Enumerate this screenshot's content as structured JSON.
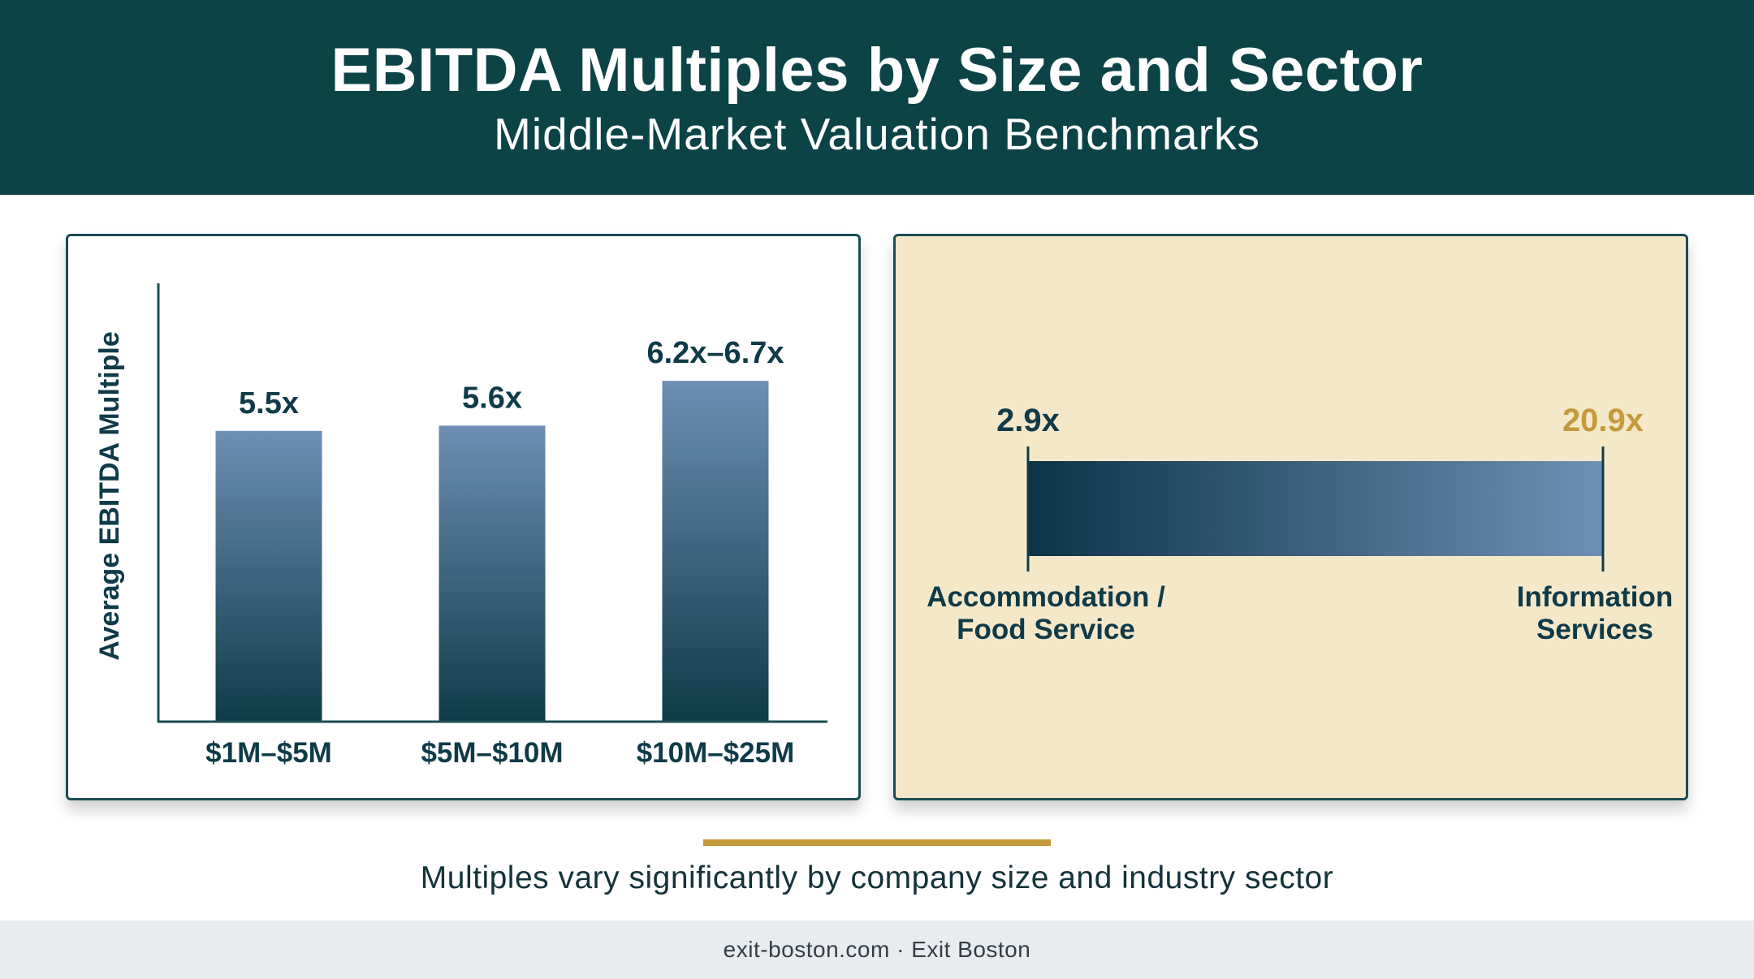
{
  "header": {
    "title": "EBITDA Multiples by Size and Sector",
    "subtitle": "Middle-Market Valuation Benchmarks"
  },
  "chart_data": [
    {
      "type": "bar",
      "title": "",
      "xlabel": "",
      "ylabel": "Average EBITDA Multiple",
      "categories": [
        "$1M–$5M",
        "$5M–$10M",
        "$10M–$25M"
      ],
      "values": [
        5.5,
        5.6,
        6.45
      ],
      "value_labels": [
        "5.5x",
        "5.6x",
        "6.2x–6.7x"
      ],
      "ylim": [
        0,
        8.3
      ],
      "grid": false,
      "bar_color_top": "#6d8fb3",
      "bar_color_bottom": "#0f3b48"
    },
    {
      "type": "range",
      "min": 2.9,
      "max": 20.9,
      "min_label": "2.9x",
      "max_label": "20.9x",
      "min_category": [
        "Accommodation /",
        "Food Service"
      ],
      "max_category": [
        "Information",
        "Services"
      ],
      "min_color": "#0f3b48",
      "max_color": "#c49a3a",
      "bar_color_start": "#0c3446",
      "bar_color_end": "#6f90b4"
    }
  ],
  "takeaway": "Multiples vary significantly by company size and industry sector",
  "footer": "exit-boston.com · Exit Boston"
}
